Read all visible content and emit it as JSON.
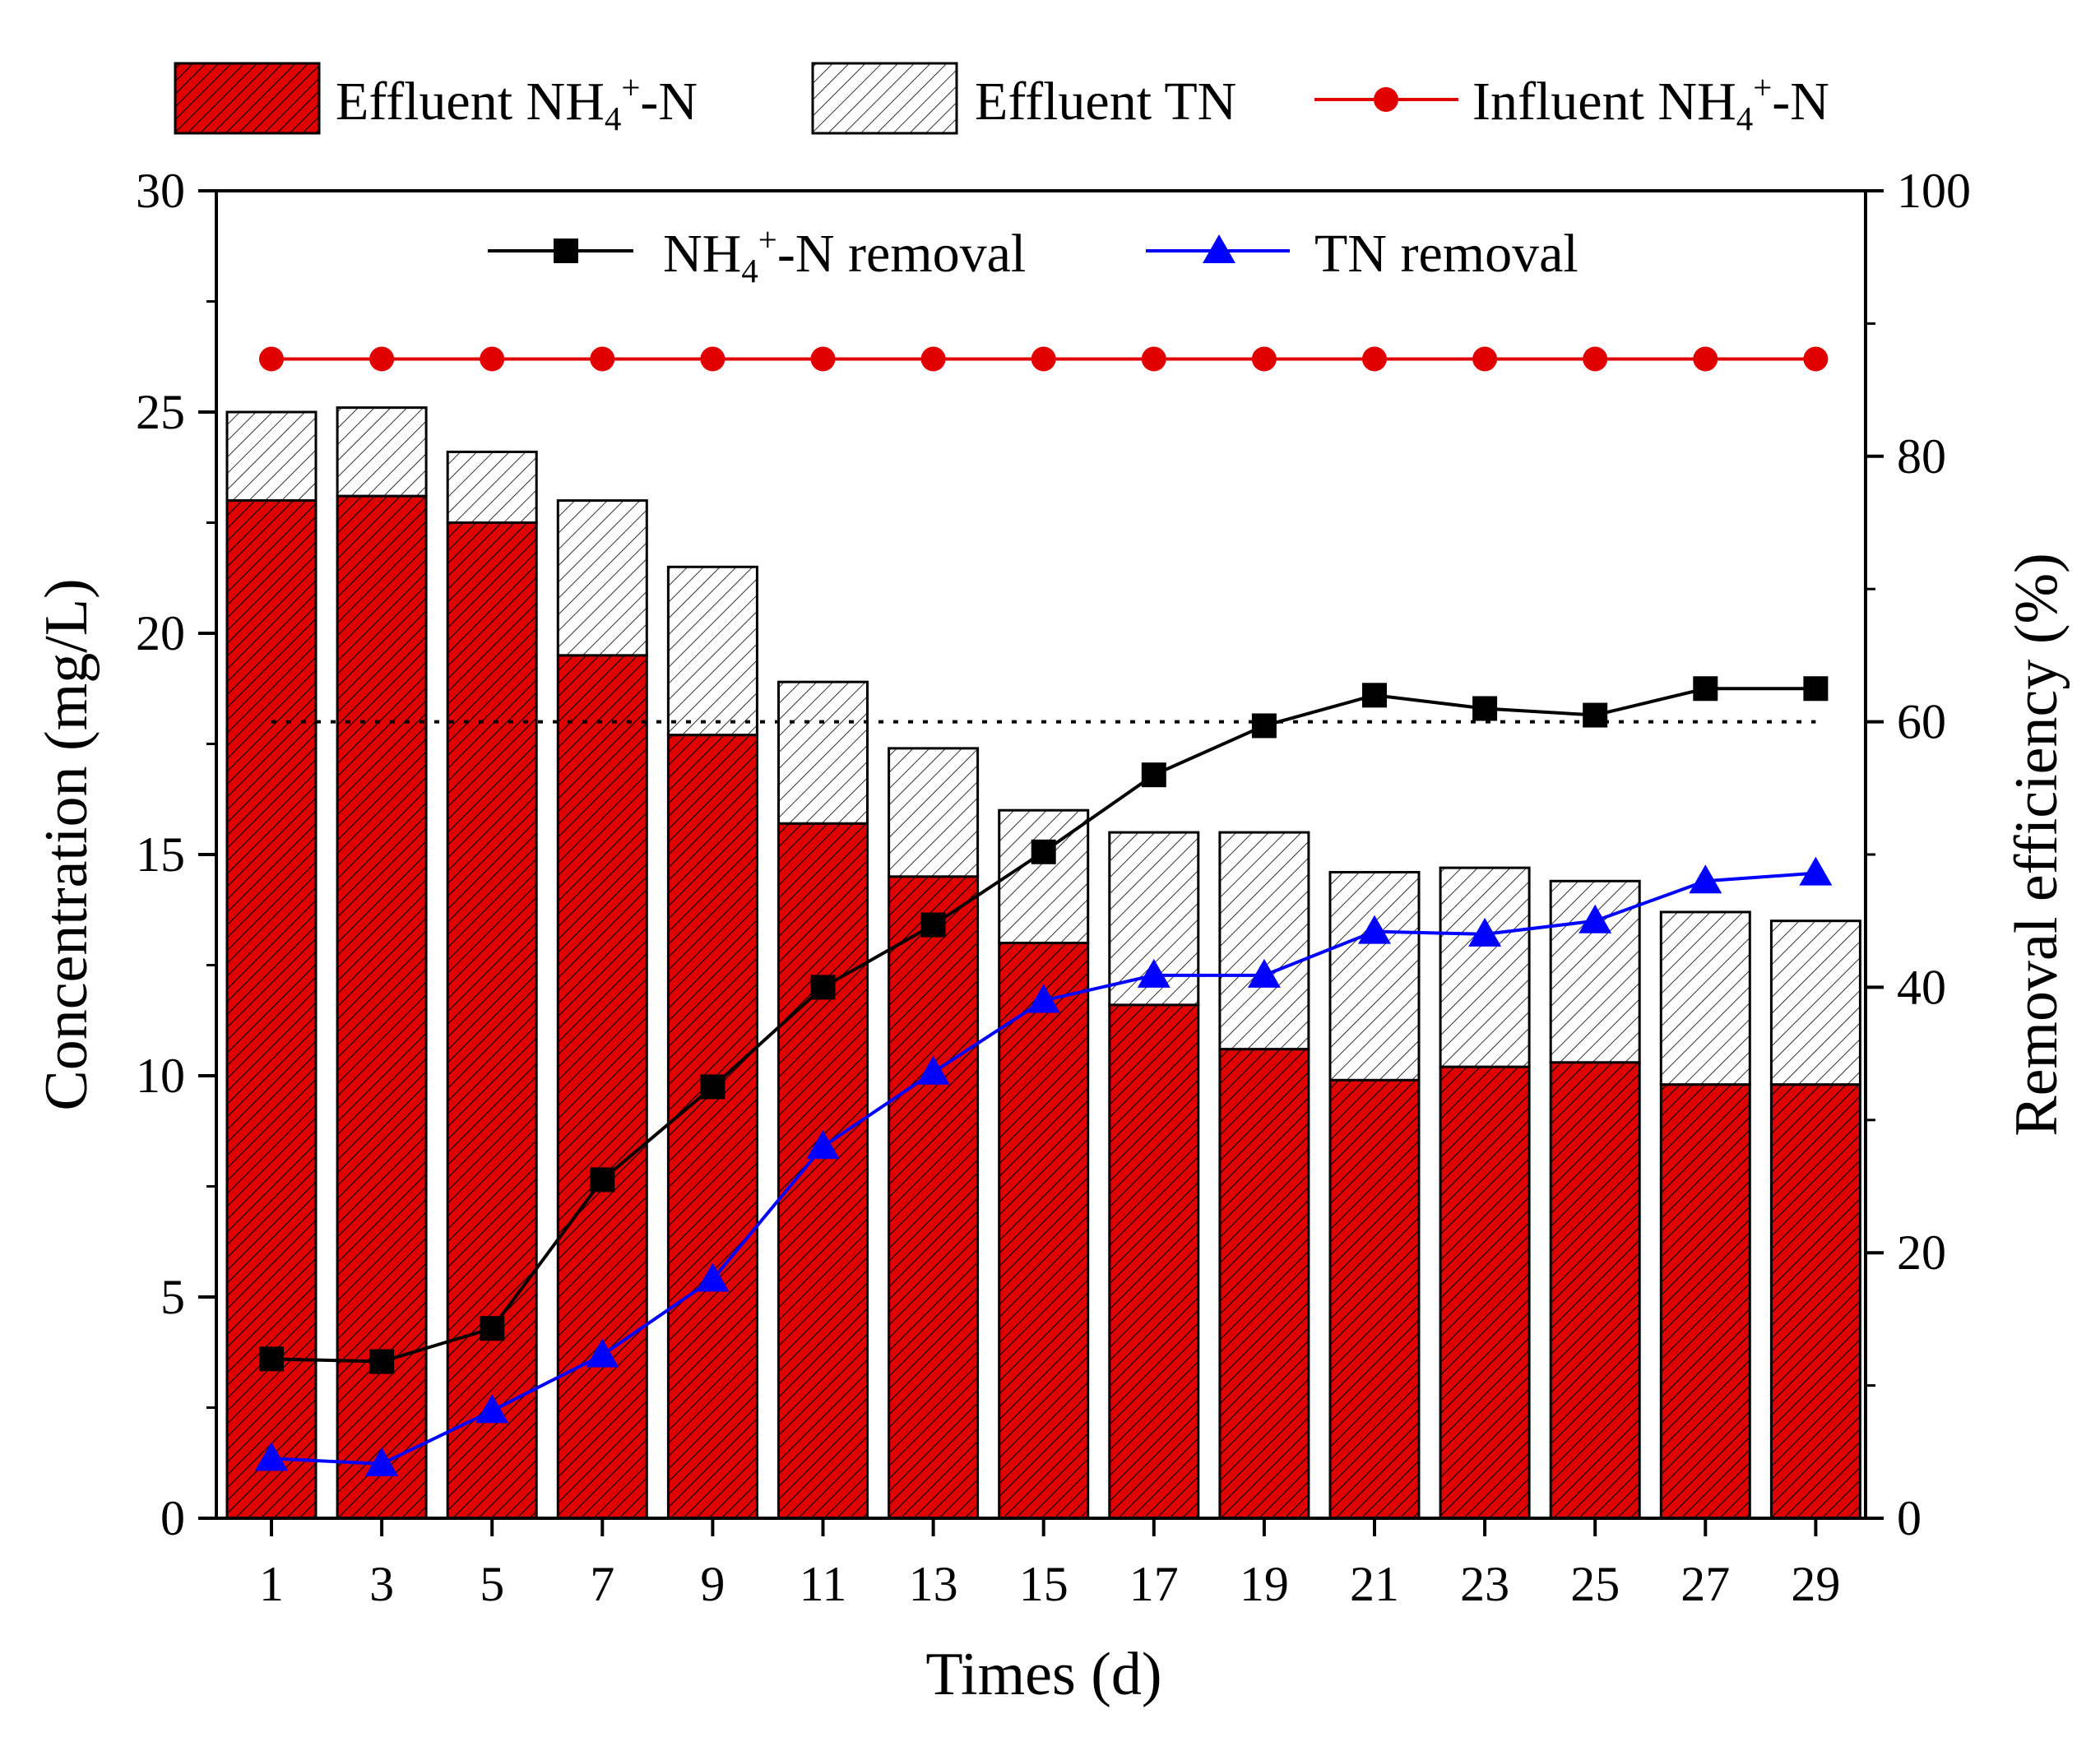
{
  "chart_data": {
    "type": "bar",
    "x": [
      1,
      3,
      5,
      7,
      9,
      11,
      13,
      15,
      17,
      19,
      21,
      23,
      25,
      27,
      29
    ],
    "xlabel": "Times (d)",
    "ylabel_left": "Concentration (mg/L)",
    "ylabel_right": "Removal efficiency (%)",
    "ylim_left": [
      0,
      30
    ],
    "ylim_right": [
      0,
      100
    ],
    "yticks_left": [
      "0",
      "5",
      "10",
      "15",
      "20",
      "25",
      "30"
    ],
    "yticks_right": [
      "0",
      "20",
      "40",
      "60",
      "80",
      "100"
    ],
    "reference_line": {
      "axis": "right",
      "value": 60,
      "style": "dotted",
      "x_from": 1,
      "x_to": 29
    },
    "series": [
      {
        "name": "Effluent NH4+-N",
        "name_parts": [
          "Effluent NH",
          "4",
          "+",
          "-N"
        ],
        "kind": "bar",
        "axis": "left",
        "color": "#e00000",
        "values": [
          23.0,
          23.1,
          22.5,
          19.5,
          17.7,
          15.7,
          14.5,
          13.0,
          11.6,
          10.6,
          9.9,
          10.2,
          10.3,
          9.8,
          9.8
        ]
      },
      {
        "name": "Effluent TN",
        "name_parts": [
          "Effluent TN"
        ],
        "kind": "bar",
        "axis": "left",
        "color": "#ffffff",
        "values": [
          25.0,
          25.1,
          24.1,
          23.0,
          21.5,
          18.9,
          17.4,
          16.0,
          15.5,
          15.5,
          14.6,
          14.7,
          14.4,
          13.7,
          13.5
        ]
      },
      {
        "name": "Influent NH4+-N",
        "name_parts": [
          "Influent NH",
          "4",
          "+",
          "-N"
        ],
        "kind": "line",
        "marker": "circle",
        "axis": "left",
        "color": "#e00000",
        "values": [
          26.2,
          26.2,
          26.2,
          26.2,
          26.2,
          26.2,
          26.2,
          26.2,
          26.2,
          26.2,
          26.2,
          26.2,
          26.2,
          26.2,
          26.2
        ]
      },
      {
        "name": "NH4+-N removal",
        "name_parts": [
          "NH",
          "4",
          "+",
          "-N removal"
        ],
        "kind": "line",
        "marker": "square",
        "axis": "right",
        "color": "#000000",
        "values": [
          12.0,
          11.8,
          14.3,
          25.5,
          32.5,
          40.0,
          44.7,
          50.2,
          56.0,
          59.7,
          62.0,
          61.0,
          60.5,
          62.5,
          62.5
        ]
      },
      {
        "name": "TN removal",
        "name_parts": [
          "TN removal"
        ],
        "kind": "line",
        "marker": "triangle",
        "axis": "right",
        "color": "#0000ff",
        "values": [
          4.5,
          4.1,
          8.1,
          12.3,
          18.0,
          28.0,
          33.6,
          39.0,
          40.9,
          40.9,
          44.2,
          44.0,
          45.0,
          48.0,
          48.6
        ]
      }
    ],
    "legend_top": {
      "placement": "top, outside plot",
      "entries": [
        0,
        1,
        2
      ]
    },
    "legend_inner": {
      "placement": "top-center, inside plot",
      "entries": [
        3,
        4
      ]
    }
  }
}
